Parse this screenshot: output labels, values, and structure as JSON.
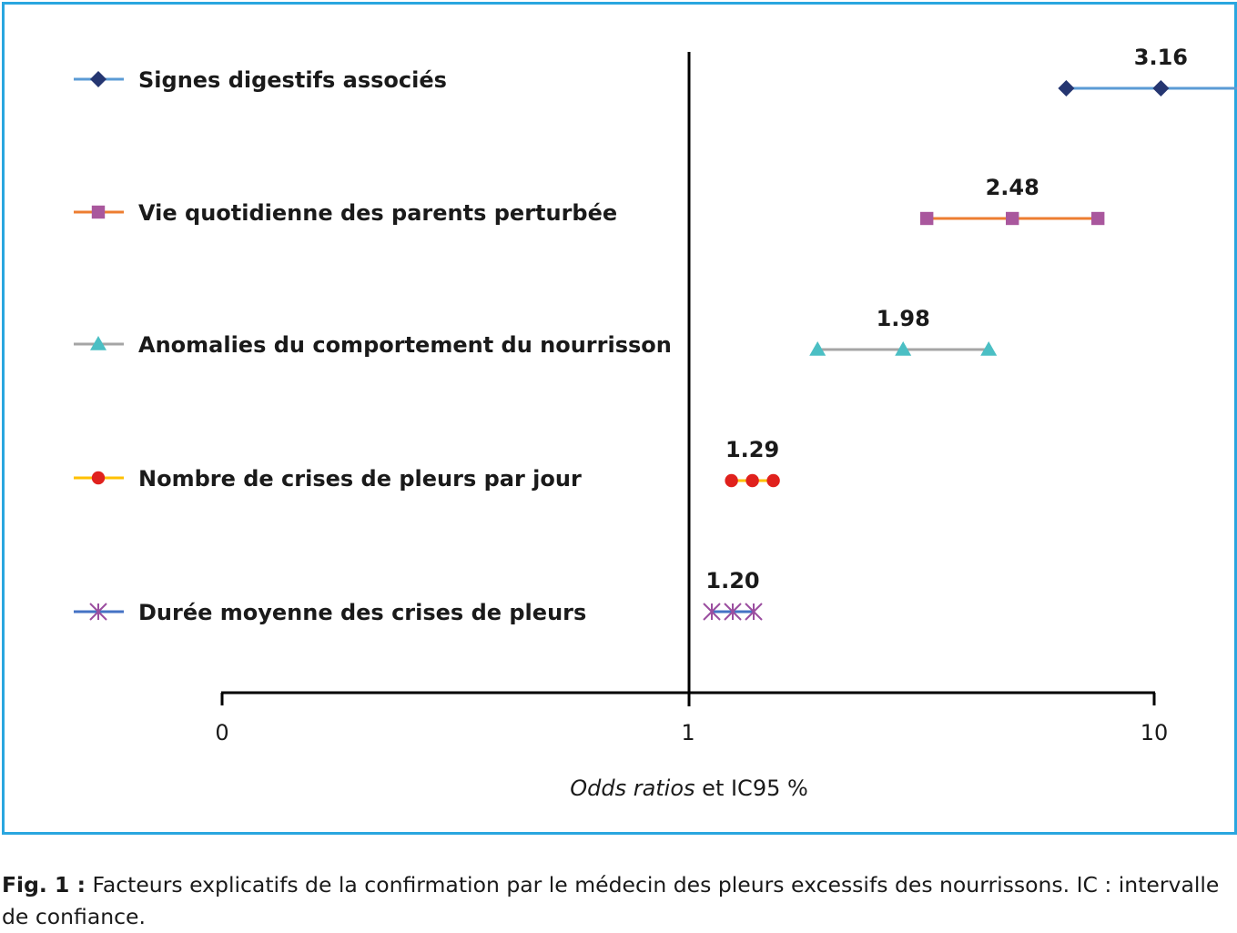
{
  "chart_data": {
    "type": "forest",
    "xlabel_italic": "Odds ratios",
    "xlabel_rest": " et IC95 %",
    "x_ticks": [
      "0",
      "1",
      "10"
    ],
    "reference_line": 1,
    "series": [
      {
        "name": "Signes digestifs associés",
        "value": 3.16,
        "label": "3.16",
        "marker": "diamond",
        "line_color": "#5b9bd5",
        "marker_color": "#253671"
      },
      {
        "name": "Vie quotidienne des parents perturbée",
        "value": 2.48,
        "label": "2.48",
        "marker": "square",
        "line_color": "#ed7d31",
        "marker_color": "#a9579d"
      },
      {
        "name": "Anomalies du comportement du nourrisson",
        "value": 1.98,
        "label": "1.98",
        "marker": "triangle",
        "line_color": "#a5a5a5",
        "marker_color": "#4bbfc4"
      },
      {
        "name": "Nombre de crises de pleurs par jour",
        "value": 1.29,
        "label": "1.29",
        "marker": "circle",
        "line_color": "#ffc000",
        "marker_color": "#e0211d"
      },
      {
        "name": "Durée moyenne des crises de pleurs",
        "value": 1.2,
        "label": "1.20",
        "marker": "asterisk",
        "line_color": "#4472c4",
        "marker_color": "#9b4ea0"
      }
    ]
  },
  "caption": {
    "label": "Fig. 1 :",
    "text": " Facteurs explicatifs de la confirmation par le médecin des pleurs excessifs des nourrissons. IC : intervalle de confiance."
  }
}
